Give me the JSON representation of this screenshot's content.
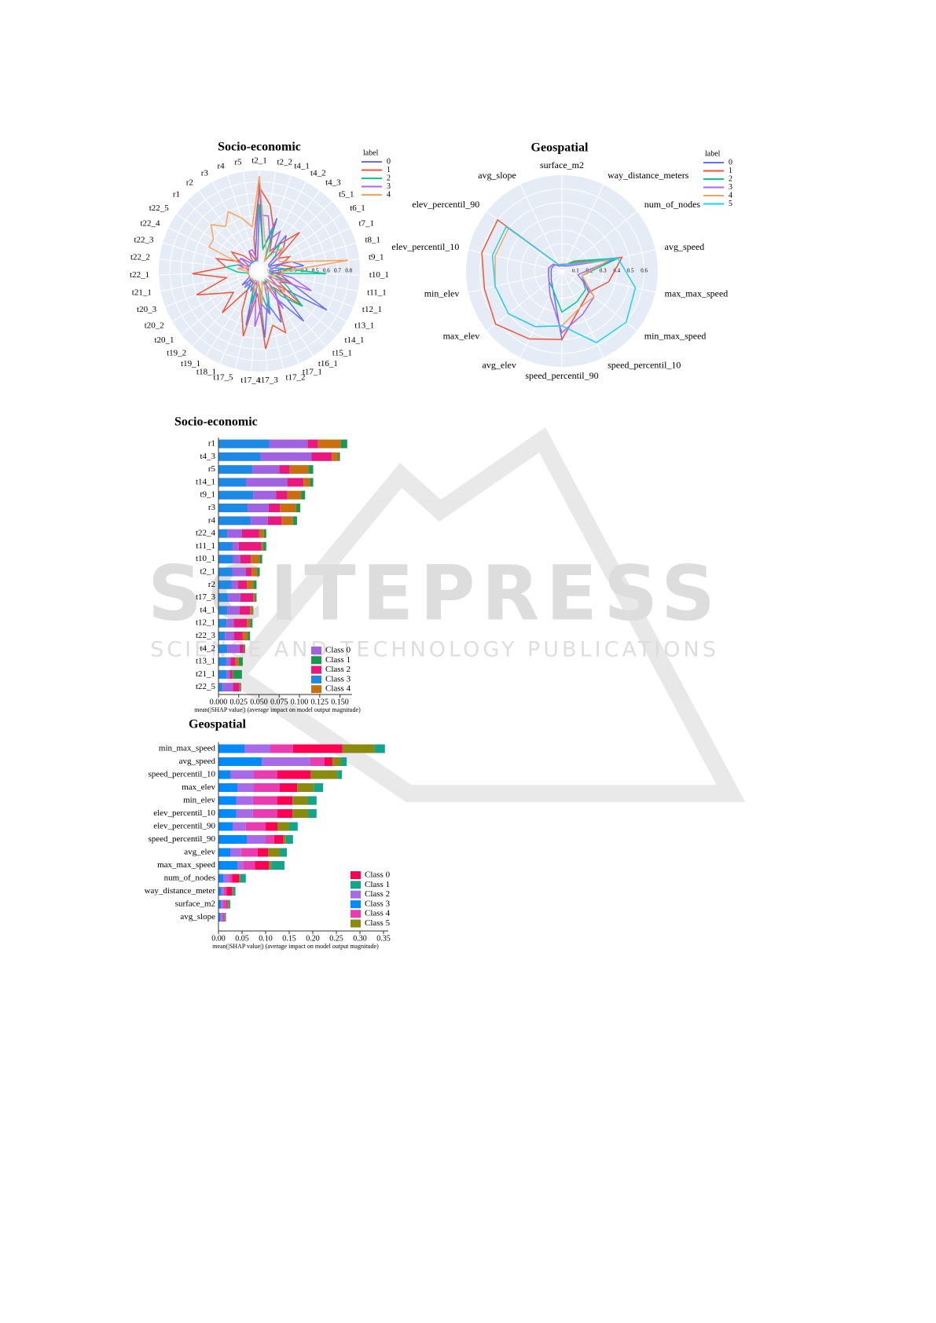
{
  "watermark": {
    "title": "SCITEPRESS",
    "subtitle": "SCIENCE AND TECHNOLOGY PUBLICATIONS"
  },
  "chart_data": [
    {
      "type": "radar",
      "title": "Socio-economic",
      "legend_title": "label",
      "categories": [
        "t2_1",
        "t2_2",
        "t4_1",
        "t4_2",
        "t4_3",
        "t5_1",
        "t6_1",
        "t7_1",
        "t8_1",
        "t9_1",
        "t10_1",
        "t11_1",
        "t12_1",
        "t13_1",
        "t14_1",
        "t15_1",
        "t16_1",
        "t17_1",
        "t17_2",
        "t17_3",
        "t17_4",
        "t17_5",
        "t18_1",
        "t19_1",
        "t19_2",
        "t20_1",
        "t20_2",
        "t20_3",
        "t21_1",
        "t22_1",
        "t22_2",
        "t22_3",
        "t22_4",
        "t22_5",
        "r1",
        "r2",
        "r3",
        "r4",
        "r5"
      ],
      "rlim": [
        0,
        0.9
      ],
      "rticks": [
        0,
        0.1,
        0.2,
        0.3,
        0.4,
        0.5,
        0.6,
        0.7,
        0.8
      ],
      "series": [
        {
          "name": "0",
          "color": "#636efa",
          "values": [
            0.8,
            0.2,
            0.5,
            0.1,
            0.4,
            0.3,
            0.2,
            0.1,
            0.3,
            0.4,
            0.1,
            0.2,
            0.3,
            0.7,
            0.2,
            0.6,
            0.3,
            0.5,
            0.3,
            0.6,
            0.1,
            0.5,
            0.1,
            0.2,
            0.1,
            0.2,
            0.1,
            0.1,
            0.1,
            0.1,
            0.1,
            0.1,
            0.2,
            0.2,
            0.1,
            0.1,
            0.1,
            0.1,
            0.2
          ]
        },
        {
          "name": "1",
          "color": "#ef553b",
          "values": [
            0.75,
            0.6,
            0.4,
            0.2,
            0.3,
            0.5,
            0.2,
            0.3,
            0.2,
            0.3,
            0.2,
            0.1,
            0.3,
            0.2,
            0.5,
            0.2,
            0.3,
            0.6,
            0.5,
            0.7,
            0.2,
            0.6,
            0.4,
            0.2,
            0.5,
            0.3,
            0.4,
            0.6,
            0.3,
            0.6,
            0.3,
            0.4,
            0.2,
            0.3,
            0.2,
            0.1,
            0.2,
            0.1,
            0.3
          ]
        },
        {
          "name": "2",
          "color": "#00cc96",
          "values": [
            0.6,
            0.2,
            0.4,
            0.1,
            0.3,
            0.2,
            0.1,
            0.1,
            0.1,
            0.2,
            0.6,
            0.1,
            0.2,
            0.3,
            0.5,
            0.3,
            0.1,
            0.2,
            0.4,
            0.2,
            0.1,
            0.3,
            0.1,
            0.2,
            0.1,
            0.1,
            0.1,
            0.1,
            0.1,
            0.2,
            0.3,
            0.2,
            0.1,
            0.1,
            0.1,
            0.1,
            0.1,
            0.1,
            0.1
          ]
        },
        {
          "name": "3",
          "color": "#ab63fa",
          "values": [
            0.5,
            0.5,
            0.3,
            0.4,
            0.2,
            0.3,
            0.1,
            0.1,
            0.2,
            0.1,
            0.1,
            0.3,
            0.5,
            0.1,
            0.2,
            0.1,
            0.4,
            0.1,
            0.4,
            0.3,
            0.5,
            0.1,
            0.2,
            0.1,
            0.2,
            0.1,
            0.1,
            0.1,
            0.1,
            0.1,
            0.1,
            0.2,
            0.1,
            0.2,
            0.1,
            0.1,
            0.2,
            0.2,
            0.1
          ]
        },
        {
          "name": "4",
          "color": "#ffa15a",
          "values": [
            0.85,
            0.3,
            0.2,
            0.1,
            0.2,
            0.3,
            0.2,
            0.2,
            0.3,
            0.8,
            0.2,
            0.2,
            0.1,
            0.2,
            0.3,
            0.1,
            0.2,
            0.2,
            0.1,
            0.3,
            0.1,
            0.2,
            0.1,
            0.1,
            0.1,
            0.1,
            0.1,
            0.1,
            0.1,
            0.1,
            0.2,
            0.1,
            0.5,
            0.5,
            0.6,
            0.5,
            0.6,
            0.5,
            0.4
          ]
        }
      ]
    },
    {
      "type": "radar",
      "title": "Geospatial",
      "legend_title": "label",
      "categories": [
        "surface_m2",
        "way_distance_meters",
        "num_of_nodes",
        "avg_speed",
        "max_max_speed",
        "min_max_speed",
        "speed_percentil_10",
        "speed_percentil_90",
        "avg_elev",
        "max_elev",
        "min_elev",
        "elev_percentil_10",
        "elev_percentil_90",
        "avg_slope"
      ],
      "rlim": [
        0,
        0.7
      ],
      "rticks": [
        0,
        0.1,
        0.2,
        0.3,
        0.4,
        0.5,
        0.6
      ],
      "series": [
        {
          "name": "0",
          "color": "#636efa",
          "values": [
            0.05,
            0.05,
            0.08,
            0.4,
            0.15,
            0.25,
            0.3,
            0.5,
            0.15,
            0.1,
            0.08,
            0.08,
            0.07,
            0.05
          ]
        },
        {
          "name": "1",
          "color": "#ef553b",
          "values": [
            0.05,
            0.05,
            0.1,
            0.45,
            0.35,
            0.25,
            0.3,
            0.5,
            0.55,
            0.62,
            0.58,
            0.6,
            0.6,
            0.05
          ]
        },
        {
          "name": "2",
          "color": "#00cc96",
          "values": [
            0.04,
            0.05,
            0.12,
            0.42,
            0.15,
            0.22,
            0.25,
            0.3,
            0.15,
            0.12,
            0.1,
            0.1,
            0.08,
            0.04
          ]
        },
        {
          "name": "3",
          "color": "#ab63fa",
          "values": [
            0.04,
            0.04,
            0.06,
            0.38,
            0.12,
            0.3,
            0.35,
            0.45,
            0.2,
            0.12,
            0.1,
            0.1,
            0.08,
            0.04
          ]
        },
        {
          "name": "4",
          "color": "#ffa15a",
          "values": [
            0.05,
            0.06,
            0.08,
            0.35,
            0.15,
            0.3,
            0.3,
            0.4,
            0.45,
            0.5,
            0.5,
            0.5,
            0.5,
            0.05
          ]
        },
        {
          "name": "5",
          "color": "#19d3f3",
          "values": [
            0.05,
            0.05,
            0.08,
            0.42,
            0.55,
            0.6,
            0.58,
            0.4,
            0.45,
            0.5,
            0.5,
            0.52,
            0.52,
            0.05
          ]
        }
      ]
    },
    {
      "type": "bar",
      "orientation": "horizontal",
      "stacked": true,
      "title": "Socio-economic",
      "categories": [
        "r1",
        "t4_3",
        "r5",
        "t14_1",
        "t9_1",
        "r3",
        "r4",
        "t22_4",
        "t11_1",
        "t10_1",
        "t2_1",
        "r2",
        "t17_3",
        "t4_1",
        "t12_1",
        "t22_3",
        "t4_2",
        "t13_1",
        "t21_1",
        "t22_5"
      ],
      "xlim": [
        0,
        0.165
      ],
      "xticks": [
        {
          "value": 0,
          "label": "0.000"
        },
        {
          "value": 0.025,
          "label": "0.025"
        },
        {
          "value": 0.05,
          "label": "0.050"
        },
        {
          "value": 0.075,
          "label": "0.075"
        },
        {
          "value": 0.1,
          "label": "0.100"
        },
        {
          "value": 0.125,
          "label": "0.125"
        },
        {
          "value": 0.15,
          "label": "0.150"
        }
      ],
      "xlabel": "mean(|SHAP value|) (average impact on model output magnitude)",
      "series": [
        {
          "name": "Class 3",
          "color": "#1e88e5",
          "values": [
            0.063,
            0.052,
            0.042,
            0.034,
            0.043,
            0.036,
            0.04,
            0.011,
            0.017,
            0.018,
            0.017,
            0.016,
            0.012,
            0.011,
            0.01,
            0.008,
            0.011,
            0.01,
            0.01,
            0.005
          ]
        },
        {
          "name": "Class 0",
          "color": "#a062e0",
          "values": [
            0.047,
            0.063,
            0.033,
            0.051,
            0.028,
            0.026,
            0.021,
            0.018,
            0.008,
            0.009,
            0.017,
            0.008,
            0.015,
            0.015,
            0.009,
            0.011,
            0.015,
            0.005,
            0.004,
            0.013
          ]
        },
        {
          "name": "Class 2",
          "color": "#e8187f",
          "values": [
            0.013,
            0.025,
            0.013,
            0.02,
            0.014,
            0.014,
            0.017,
            0.021,
            0.028,
            0.013,
            0.007,
            0.011,
            0.016,
            0.013,
            0.016,
            0.011,
            0.005,
            0.006,
            0.003,
            0.008
          ]
        },
        {
          "name": "Class 4",
          "color": "#c87010",
          "values": [
            0.028,
            0.008,
            0.023,
            0.008,
            0.017,
            0.02,
            0.014,
            0.006,
            0.002,
            0.011,
            0.007,
            0.008,
            0.002,
            0.003,
            0.004,
            0.006,
            0.001,
            0.004,
            0.001,
            0.001
          ]
        },
        {
          "name": "Class 1",
          "color": "#1a9850",
          "values": [
            0.008,
            0.002,
            0.006,
            0.004,
            0.005,
            0.005,
            0.005,
            0.003,
            0.004,
            0.003,
            0.003,
            0.004,
            0.002,
            0.001,
            0.003,
            0.003,
            0.001,
            0.005,
            0.011,
            0.001
          ]
        }
      ]
    },
    {
      "type": "bar",
      "orientation": "horizontal",
      "stacked": true,
      "title": "Geospatial",
      "categories": [
        "min_max_speed",
        "avg_speed",
        "speed_percentil_10",
        "max_elev",
        "min_elev",
        "elev_percentil_10",
        "elev_percentil_90",
        "speed_percentil_90",
        "avg_elev",
        "max_max_speed",
        "num_of_nodes",
        "way_distance_meter",
        "surface_m2",
        "avg_slope"
      ],
      "xlim": [
        0,
        0.36
      ],
      "xticks": [
        {
          "value": 0,
          "label": "0.00"
        },
        {
          "value": 0.05,
          "label": "0.05"
        },
        {
          "value": 0.1,
          "label": "0.10"
        },
        {
          "value": 0.15,
          "label": "0.15"
        },
        {
          "value": 0.2,
          "label": "0.20"
        },
        {
          "value": 0.25,
          "label": "0.25"
        },
        {
          "value": 0.3,
          "label": "0.30"
        },
        {
          "value": 0.35,
          "label": "0.35"
        }
      ],
      "xlabel": "mean(|SHAP value|) (average impact on model output magnitude)",
      "series": [
        {
          "name": "Class 3",
          "color": "#008bfb",
          "values": [
            0.055,
            0.092,
            0.025,
            0.04,
            0.038,
            0.038,
            0.03,
            0.06,
            0.025,
            0.04,
            0.01,
            0.006,
            0.005,
            0.004
          ]
        },
        {
          "name": "Class 2",
          "color": "#a86be8",
          "values": [
            0.055,
            0.103,
            0.05,
            0.035,
            0.035,
            0.035,
            0.028,
            0.04,
            0.023,
            0.012,
            0.012,
            0.005,
            0.004,
            0.004
          ]
        },
        {
          "name": "Class 4",
          "color": "#e83cb0",
          "values": [
            0.048,
            0.03,
            0.05,
            0.055,
            0.052,
            0.052,
            0.042,
            0.018,
            0.035,
            0.025,
            0.007,
            0.006,
            0.008,
            0.004
          ]
        },
        {
          "name": "Class 0",
          "color": "#ff0052",
          "values": [
            0.105,
            0.017,
            0.07,
            0.037,
            0.032,
            0.032,
            0.025,
            0.02,
            0.022,
            0.03,
            0.015,
            0.012,
            0.002,
            0.001
          ]
        },
        {
          "name": "Class 5",
          "color": "#8a8a0f",
          "values": [
            0.068,
            0.018,
            0.057,
            0.035,
            0.033,
            0.033,
            0.025,
            0.005,
            0.025,
            0.005,
            0.002,
            0.002,
            0.003,
            0.001
          ]
        },
        {
          "name": "Class 1",
          "color": "#12a58c",
          "values": [
            0.022,
            0.012,
            0.01,
            0.02,
            0.018,
            0.018,
            0.018,
            0.015,
            0.015,
            0.028,
            0.012,
            0.005,
            0.003,
            0.002
          ]
        }
      ]
    }
  ]
}
